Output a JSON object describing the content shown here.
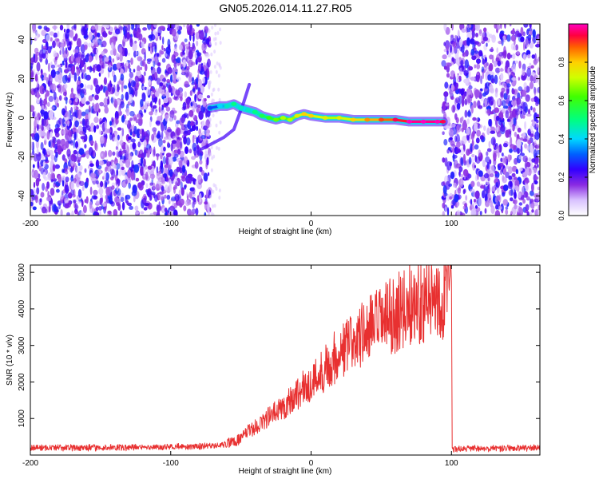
{
  "page": {
    "title": "GN05.2026.014.11.27.R05"
  },
  "chart_data": [
    {
      "type": "heatmap",
      "name": "spectrogram",
      "title": "GN05.2026.014.11.27.R05",
      "xlabel": "Height of straight line (km)",
      "ylabel": "Frequency (Hz)",
      "xlim": [
        -200,
        163
      ],
      "ylim": [
        -50,
        48
      ],
      "x_ticks": [
        -200,
        -100,
        0,
        100
      ],
      "x_tick_labels": [
        "-200",
        "-100",
        "0",
        "100"
      ],
      "y_ticks": [
        -40,
        -20,
        0,
        20,
        40
      ],
      "y_tick_labels": [
        "-40",
        "-20",
        "0",
        "20",
        "40"
      ],
      "noise_regions_km": [
        [
          -200,
          -72
        ],
        [
          94,
          163
        ]
      ],
      "clear_region_km": [
        -72,
        94
      ],
      "signal_trace": {
        "x": [
          -72,
          -65,
          -60,
          -55,
          -50,
          -45,
          -40,
          -35,
          -30,
          -25,
          -20,
          -15,
          -10,
          -5,
          0,
          10,
          20,
          30,
          40,
          50,
          60,
          70,
          80,
          90,
          94
        ],
        "y": [
          5,
          6,
          6,
          7,
          5,
          4,
          3,
          1,
          0,
          -1,
          0,
          -1,
          1,
          2,
          1,
          0,
          0,
          -1,
          -1,
          -1,
          -1,
          -2,
          -2,
          -2,
          -2
        ],
        "amplitude": [
          0.25,
          0.35,
          0.4,
          0.45,
          0.4,
          0.4,
          0.45,
          0.5,
          0.55,
          0.6,
          0.65,
          0.65,
          0.7,
          0.75,
          0.75,
          0.7,
          0.7,
          0.75,
          0.8,
          0.85,
          0.9,
          0.95,
          1.0,
          0.95,
          0.9
        ]
      },
      "branch_trace": {
        "x": [
          -78,
          -70,
          -62,
          -55,
          -48,
          -44
        ],
        "y": [
          -16,
          -13,
          -10,
          -6,
          8,
          17
        ]
      },
      "colorbar": {
        "label": "Normalized spectral amplitude",
        "range": [
          0,
          1
        ],
        "ticks": [
          0.0,
          0.2,
          0.4,
          0.6,
          0.8
        ],
        "tick_labels": [
          "0.0",
          "0.2",
          "0.4",
          "0.6",
          "0.8"
        ]
      }
    },
    {
      "type": "line",
      "name": "snr",
      "title": "",
      "xlabel": "Height of straight line (km)",
      "ylabel": "SNR (10 * v/v)",
      "xlim": [
        -200,
        163
      ],
      "ylim": [
        0,
        5200
      ],
      "x_ticks": [
        -200,
        -100,
        0,
        100
      ],
      "x_tick_labels": [
        "-200",
        "-100",
        "0",
        "100"
      ],
      "y_ticks": [
        1000,
        2000,
        3000,
        4000,
        5000
      ],
      "y_tick_labels": [
        "1000",
        "2000",
        "3000",
        "4000",
        "5000"
      ],
      "line_color": "#e83030",
      "series": [
        {
          "name": "SNR",
          "x": [
            -200,
            -150,
            -100,
            -70,
            -60,
            -50,
            -45,
            -40,
            -30,
            -20,
            -10,
            0,
            10,
            20,
            30,
            40,
            50,
            60,
            70,
            80,
            90,
            99,
            100,
            100.5,
            110,
            130,
            163
          ],
          "y": [
            200,
            200,
            220,
            250,
            300,
            450,
            650,
            750,
            1050,
            1300,
            1700,
            1950,
            2400,
            2800,
            3100,
            3400,
            3650,
            3850,
            4100,
            4250,
            4300,
            4450,
            5200,
            150,
            180,
            180,
            200
          ]
        }
      ]
    }
  ]
}
